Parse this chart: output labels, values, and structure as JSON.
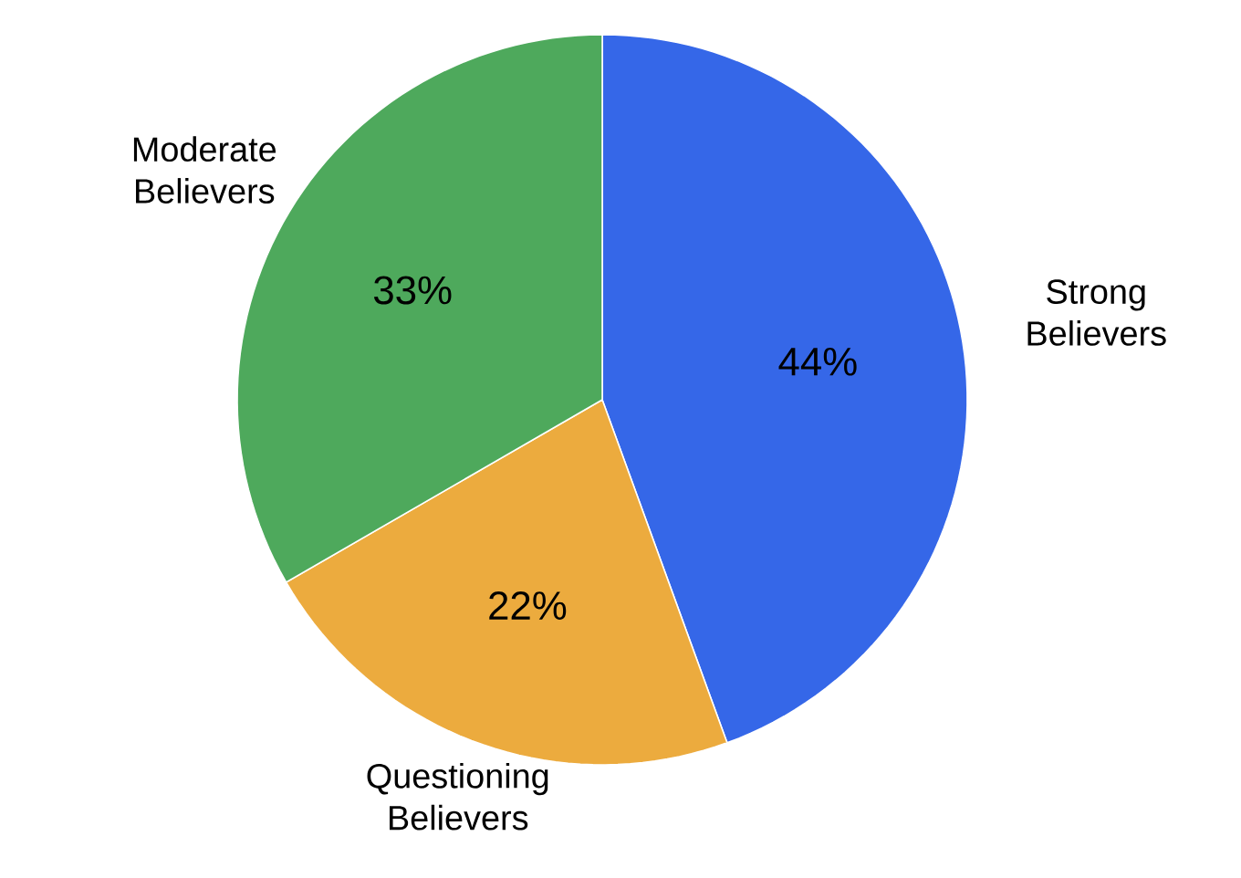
{
  "chart_data": {
    "type": "pie",
    "categories": [
      "Strong Believers",
      "Questioning Believers",
      "Moderate Believers"
    ],
    "values": [
      44,
      22,
      33
    ],
    "colors": [
      "#3567e8",
      "#ecab3e",
      "#4ea95c"
    ],
    "value_labels": [
      "44%",
      "22%",
      "33%"
    ]
  }
}
